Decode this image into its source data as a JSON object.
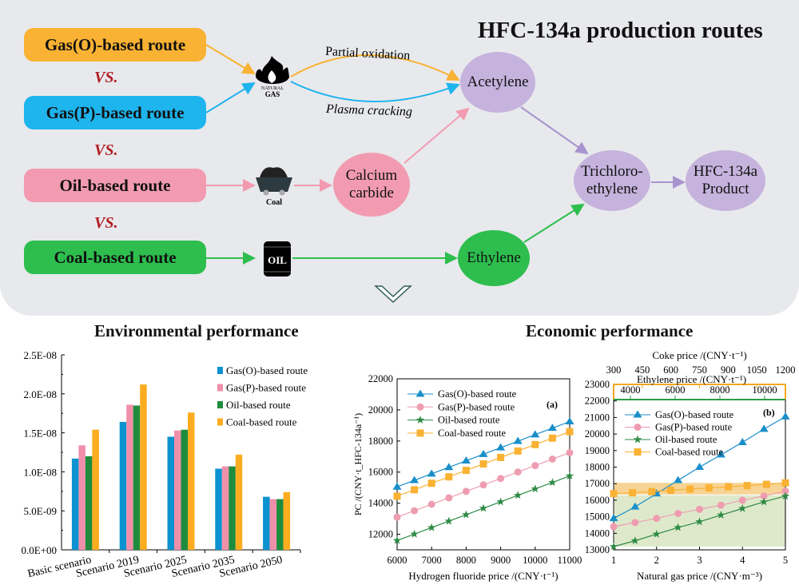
{
  "diagram": {
    "title": "HFC-134a production routes",
    "routes": [
      {
        "label": "Gas(O)-based route",
        "color": "#F9B233"
      },
      {
        "label": "Gas(P)-based route",
        "color": "#1EB4EE"
      },
      {
        "label": "Oil-based route",
        "color": "#F29BB0"
      },
      {
        "label": "Coal-based route",
        "color": "#2DBE4E"
      }
    ],
    "vs_label": "VS.",
    "icons": {
      "natural_gas_line1": "NATURAL",
      "natural_gas_line2": "GAS",
      "coal": "Coal",
      "oil": "OIL"
    },
    "edge_labels": {
      "partial_oxidation": "Partial oxidation",
      "plasma_cracking": "Plasma cracking"
    },
    "nodes": {
      "acetylene": "Acetylene",
      "calcium_carbide": [
        "Calcium",
        "carbide"
      ],
      "ethylene": "Ethylene",
      "trichloroethylene": [
        "Trichloro-",
        "ethylene"
      ],
      "product": [
        "HFC-134a",
        "Product"
      ]
    },
    "node_colors": {
      "purple": "#C5B3DD",
      "pink": "#F29BB0",
      "green": "#2DBE4E"
    }
  },
  "sections": {
    "environmental": "Environmental performance",
    "economic": "Economic performance"
  },
  "chart_data": [
    {
      "type": "bar",
      "title": "Environmental performance",
      "categories": [
        "Basic scenario",
        "Scenario 2019",
        "Scenario 2025",
        "Scenario 2035",
        "Scenario 2050"
      ],
      "series": [
        {
          "name": "Gas(O)-based route",
          "color": "#0B92D0",
          "values": [
            1.17e-08,
            1.64e-08,
            1.45e-08,
            1.04e-08,
            6.8e-09
          ]
        },
        {
          "name": "Gas(P)-based route",
          "color": "#F08FAA",
          "values": [
            1.34e-08,
            1.86e-08,
            1.53e-08,
            1.07e-08,
            6.5e-09
          ]
        },
        {
          "name": "Oil-based route",
          "color": "#1E8C3C",
          "values": [
            1.2e-08,
            1.85e-08,
            1.54e-08,
            1.07e-08,
            6.5e-09
          ]
        },
        {
          "name": "Coal-based route",
          "color": "#FBAD1F",
          "values": [
            1.54e-08,
            2.12e-08,
            1.76e-08,
            1.22e-08,
            7.4e-09
          ]
        }
      ],
      "yticks": [
        "0.0E+00",
        "5.0E-09",
        "1.0E-08",
        "1.5E-08",
        "2.0E-08",
        "2.5E-08"
      ],
      "ylim": [
        0,
        2.5e-08
      ],
      "legend": "top-right"
    },
    {
      "type": "line",
      "panel_label": "(a)",
      "xlabel": "Hydrogen fluoride price /(CNY·t⁻¹)",
      "ylabel": "PC /(CNY·t_HFC-134a⁻¹)",
      "xlim": [
        6000,
        11000
      ],
      "ylim": [
        11000,
        22000
      ],
      "xticks": [
        6000,
        7000,
        8000,
        9000,
        10000,
        11000
      ],
      "yticks": [
        12000,
        14000,
        16000,
        18000,
        20000,
        22000
      ],
      "x": [
        6000,
        6500,
        7000,
        7500,
        8000,
        8500,
        9000,
        9500,
        10000,
        10500,
        11000
      ],
      "series": [
        {
          "name": "Gas(O)-based route",
          "color": "#1A8FC9",
          "marker": "triangle",
          "values": [
            15050,
            15470,
            15890,
            16310,
            16730,
            17150,
            17570,
            17990,
            18410,
            18830,
            19250
          ]
        },
        {
          "name": "Gas(P)-based route",
          "color": "#EE9DB0",
          "marker": "circle",
          "values": [
            13100,
            13515,
            13930,
            14345,
            14760,
            15175,
            15590,
            16005,
            16420,
            16835,
            17250
          ]
        },
        {
          "name": "Oil-based route",
          "color": "#2E8B45",
          "marker": "star",
          "values": [
            11600,
            12015,
            12430,
            12845,
            13260,
            13675,
            14090,
            14505,
            14920,
            15335,
            15750
          ]
        },
        {
          "name": "Coal-based route",
          "color": "#F9B233",
          "marker": "square",
          "values": [
            14450,
            14865,
            15280,
            15695,
            16110,
            16525,
            16940,
            17355,
            17770,
            18185,
            18600
          ]
        }
      ],
      "legend": "top-left"
    },
    {
      "type": "line",
      "panel_label": "(b)",
      "xlabel": "Natural gas price /(CNY·m⁻³)",
      "top_axis_1": {
        "label": "Coke price /(CNY·t⁻¹)",
        "ticks": [
          300,
          450,
          600,
          750,
          900,
          1050,
          1200
        ],
        "range": [
          300,
          1200
        ]
      },
      "top_axis_2": {
        "label": "Ethylene price /(CNY·t⁻¹)",
        "ticks": [
          4000,
          6000,
          8000,
          10000
        ],
        "range": [
          3250,
          10930
        ]
      },
      "xlim": [
        1,
        5
      ],
      "ylim": [
        13000,
        23000
      ],
      "xticks": [
        1,
        2,
        3,
        4,
        5
      ],
      "yticks": [
        13000,
        14000,
        15000,
        16000,
        17000,
        18000,
        19000,
        20000,
        21000,
        22000,
        23000
      ],
      "x": [
        1,
        1.5,
        2,
        2.5,
        3,
        3.5,
        4,
        4.5,
        5
      ],
      "series": [
        {
          "name": "Gas(O)-based route",
          "color": "#1A8FC9",
          "marker": "triangle",
          "values": [
            14900,
            15600,
            16400,
            17200,
            18000,
            18750,
            19500,
            20300,
            21050
          ]
        },
        {
          "name": "Gas(P)-based route",
          "color": "#EE9DB0",
          "marker": "circle",
          "values": [
            14400,
            14650,
            14900,
            15200,
            15450,
            15700,
            16000,
            16250,
            16550
          ]
        },
        {
          "name": "Oil-based route",
          "color": "#2E8B45",
          "marker": "star",
          "values": [
            13200,
            13550,
            13950,
            14350,
            14700,
            15100,
            15500,
            15900,
            16250
          ]
        },
        {
          "name": "Coal-based route",
          "color": "#F9B233",
          "marker": "square",
          "x": [
            1,
            1.44,
            1.89,
            2.33,
            2.78,
            3.22,
            3.67,
            4.11,
            4.56,
            5
          ],
          "values": [
            16400,
            16450,
            16520,
            16600,
            16670,
            16740,
            16810,
            16880,
            16960,
            17050
          ]
        }
      ],
      "bands": [
        {
          "name": "coal-range",
          "color": "#F5C97A",
          "y": [
            16350,
            17050
          ]
        },
        {
          "name": "oil-range",
          "color": "#D6E3BE",
          "y": [
            13200,
            16300
          ]
        }
      ],
      "legend": "top-left"
    }
  ]
}
